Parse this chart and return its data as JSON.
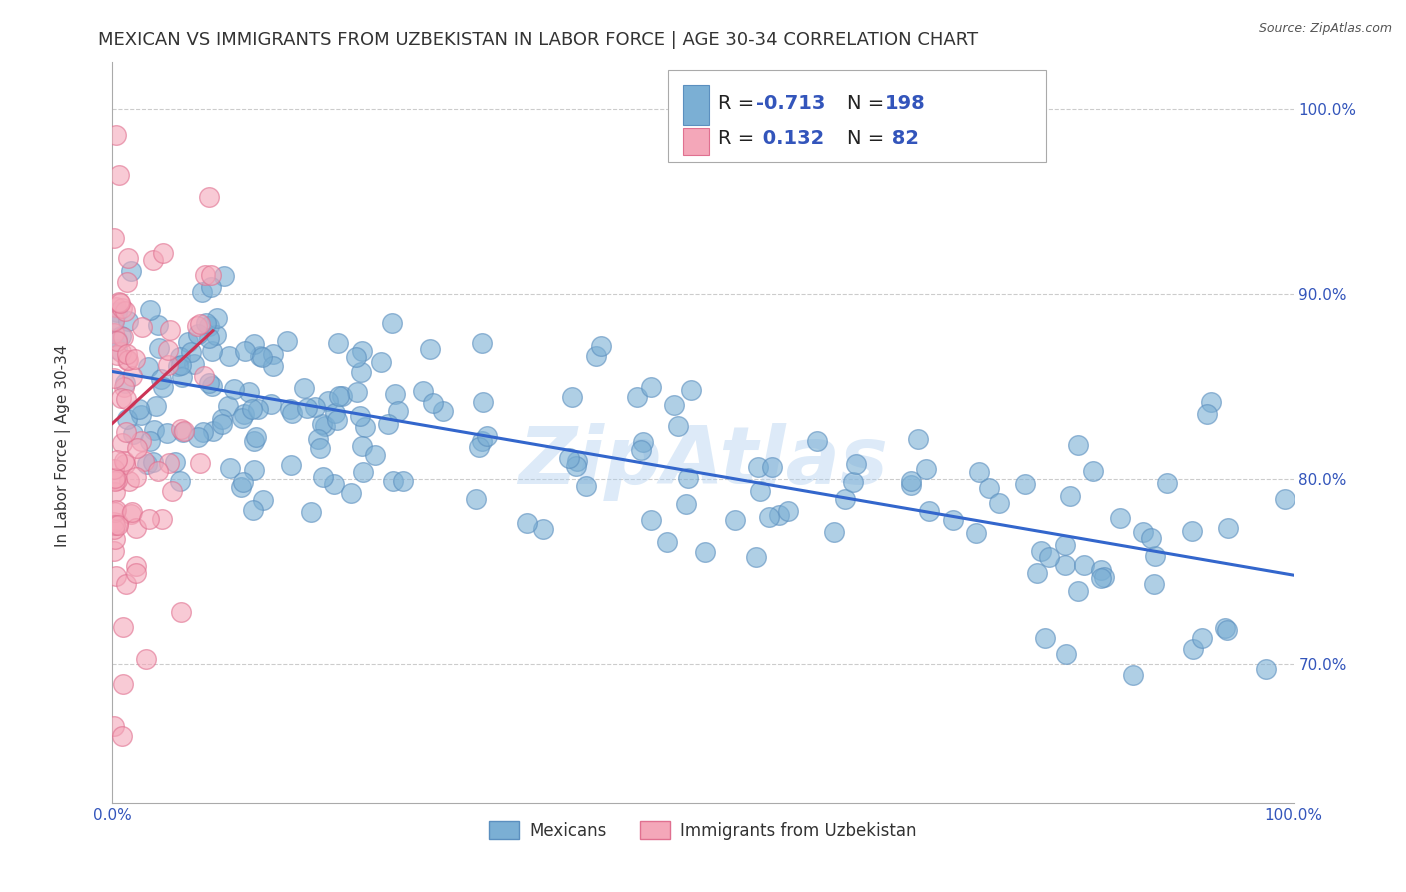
{
  "title": "MEXICAN VS IMMIGRANTS FROM UZBEKISTAN IN LABOR FORCE | AGE 30-34 CORRELATION CHART",
  "source_text": "Source: ZipAtlas.com",
  "ylabel": "In Labor Force | Age 30-34",
  "xlim": [
    0.0,
    1.0
  ],
  "ylim": [
    0.625,
    1.025
  ],
  "yticks": [
    0.7,
    0.8,
    0.9,
    1.0
  ],
  "ytick_labels": [
    "70.0%",
    "80.0%",
    "90.0%",
    "100.0%"
  ],
  "xticks": [
    0.0,
    1.0
  ],
  "xtick_labels": [
    "0.0%",
    "100.0%"
  ],
  "legend_R1": "-0.713",
  "legend_N1": "198",
  "legend_R2": "0.132",
  "legend_N2": "82",
  "blue_color": "#7BAFD4",
  "blue_edge_color": "#5B8FBF",
  "pink_color": "#F4A7B9",
  "pink_edge_color": "#E07090",
  "trend_blue": "#3366CC",
  "trend_pink": "#CC3355",
  "watermark": "ZipAtlas",
  "watermark_color": "#AACCEE",
  "trend_blue_x0": 0.0,
  "trend_blue_x1": 1.0,
  "trend_blue_y0": 0.858,
  "trend_blue_y1": 0.748,
  "trend_pink_x0": 0.0,
  "trend_pink_x1": 0.085,
  "trend_pink_y0": 0.83,
  "trend_pink_y1": 0.88,
  "grid_color": "#CCCCCC",
  "background_color": "#FFFFFF",
  "title_fontsize": 13,
  "axis_label_fontsize": 11,
  "tick_fontsize": 11,
  "legend_text_color": "#3355BB",
  "legend_fontsize": 14
}
